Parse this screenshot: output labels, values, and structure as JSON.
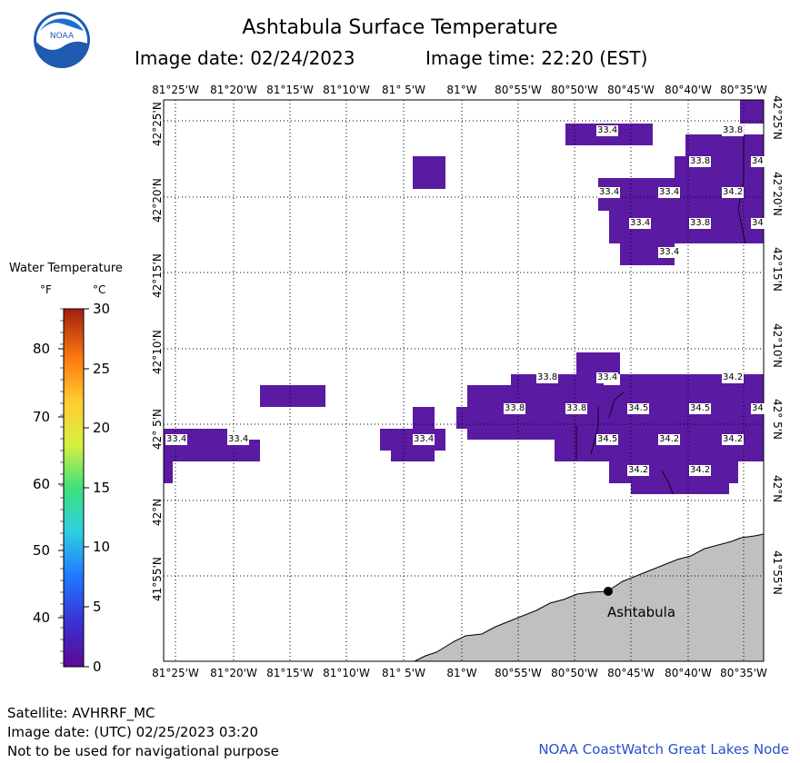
{
  "header": {
    "title": "Ashtabula Surface Temperature",
    "image_date": "Image date: 02/24/2023",
    "image_time": "Image time: 22:20 (EST)"
  },
  "logo": {
    "text": "NOAA"
  },
  "longitude_labels": [
    "81°25'W",
    "81°20'W",
    "81°15'W",
    "81°10'W",
    "81° 5'W",
    "81°W",
    "80°55'W",
    "80°50'W",
    "80°45'W",
    "80°40'W",
    "80°35'W"
  ],
  "latitude_labels": [
    "42°25'N",
    "42°20'N",
    "42°15'N",
    "42°10'N",
    "42° 5'N",
    "42°N",
    "41°55'N"
  ],
  "legend": {
    "title": "Water Temperature",
    "unit_f": "°F",
    "unit_c": "°C",
    "fahrenheit_ticks": [
      "80",
      "70",
      "60",
      "50",
      "40"
    ],
    "celsius_ticks": [
      "30",
      "25",
      "20",
      "15",
      "10",
      "5",
      "0"
    ]
  },
  "temperature_labels": [
    "33.4",
    "33.8",
    "33.8",
    "33.4",
    "33.4",
    "34.2",
    "33.4",
    "33.8",
    "33.4",
    "33.8",
    "33.4",
    "34.2",
    "33.8",
    "33.8",
    "34.5",
    "34.5",
    "33.4",
    "33.4",
    "33.4",
    "34.5",
    "34.2",
    "34.2",
    "34.2",
    "34.2"
  ],
  "edge_labels": [
    "34",
    "34",
    "34"
  ],
  "city": {
    "name": "Ashtabula"
  },
  "footer": {
    "satellite": "Satellite: AVHRRF_MC",
    "utc_date": "Image date: (UTC) 02/25/2023  03:20",
    "disclaimer": "Not to be used for navigational purpose",
    "credit": "NOAA CoastWatch Great Lakes Node"
  },
  "colors": {
    "water_cell": "#5b1aa2",
    "land": "#c0c0c0",
    "grid": "#000000",
    "credit": "#2a4fc8"
  }
}
